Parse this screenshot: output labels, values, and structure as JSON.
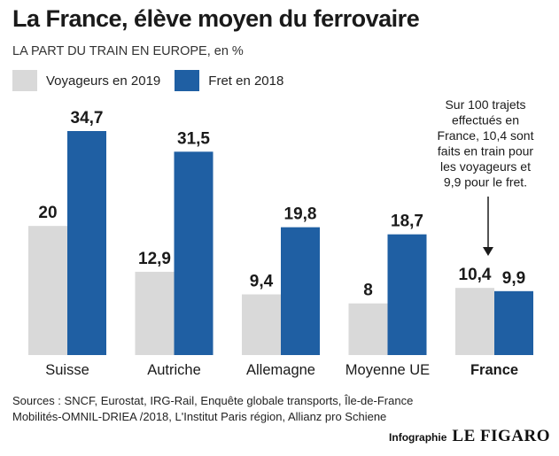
{
  "header": {
    "title": "La France, élève moyen du ferrovaire",
    "subtitle": "LA PART DU TRAIN EN EUROPE, en %"
  },
  "legend": {
    "items": [
      {
        "label": "Voyageurs en 2019",
        "color": "#d9d9d9"
      },
      {
        "label": "Fret en 2018",
        "color": "#1f5fa3"
      }
    ]
  },
  "annotation": {
    "lines": [
      "Sur 100 trajets",
      "effectués en",
      "France, 10,4 sont",
      "faits en train pour",
      "les voyageurs et",
      "9,9 pour le fret."
    ]
  },
  "chart_data": {
    "type": "bar",
    "categories": [
      "Suisse",
      "Autriche",
      "Allemagne",
      "Moyenne UE",
      "France"
    ],
    "highlight_category": "France",
    "series": [
      {
        "name": "Voyageurs en 2019",
        "values": [
          20,
          12.9,
          9.4,
          8,
          10.4
        ],
        "labels": [
          "20",
          "12,9",
          "9,4",
          "8",
          "10,4"
        ],
        "color": "#d9d9d9"
      },
      {
        "name": "Fret en 2018",
        "values": [
          34.7,
          31.5,
          19.8,
          18.7,
          9.9
        ],
        "labels": [
          "34,7",
          "31,5",
          "19,8",
          "18,7",
          "9,9"
        ],
        "color": "#1f5fa3"
      }
    ],
    "ylim": [
      0,
      34.7
    ],
    "grid": false
  },
  "footer": {
    "sources_line1": "Sources : SNCF, Eurostat, IRG-Rail, Enquête globale transports, Île-de-France",
    "sources_line2": "Mobilités-OMNIL-DRIEA /2018, L'Institut Paris région, Allianz pro Schiene",
    "credit_label": "Infographie",
    "credit_brand": "LE FIGARO"
  }
}
